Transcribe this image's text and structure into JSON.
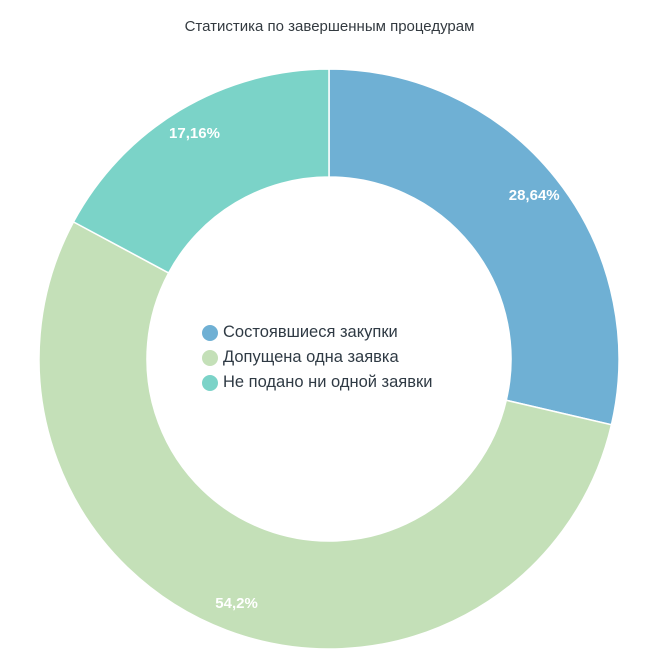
{
  "chart_data": {
    "type": "pie",
    "title": "Статистика по завершенным процедурам",
    "categories": [
      "Состоявшиеся закупки",
      "Допущена одна заявка",
      "Не подано ни одной заявки"
    ],
    "values": [
      28.64,
      54.2,
      17.16
    ],
    "value_labels": [
      "28,64%",
      "54,2%",
      "17,16%"
    ],
    "colors": [
      "#6fb0d4",
      "#c4e0b8",
      "#7bd3c8"
    ],
    "legend_position": "center",
    "donut": true
  }
}
